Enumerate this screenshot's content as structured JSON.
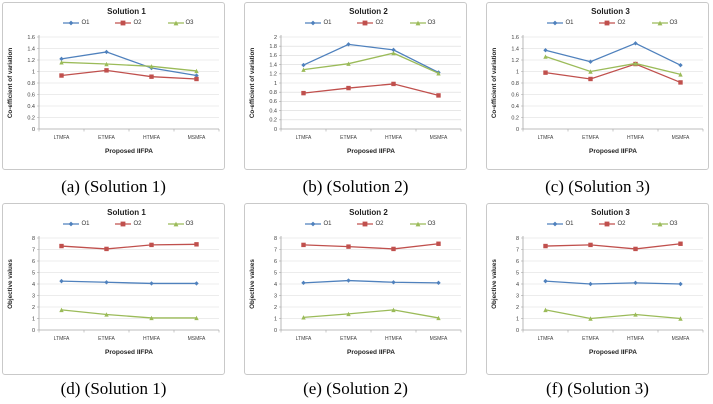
{
  "palette": {
    "o1_blue": "#4F81BD",
    "o2_red": "#C0504D",
    "o3_green": "#9BBB59",
    "gridline": "#d9d9d9",
    "axis": "#a6a6a6",
    "panel_border": "#c9c9c9",
    "tick_text": "#404040"
  },
  "chart_data": [
    {
      "type": "line",
      "panel_id": "a",
      "title": "Solution 1",
      "caption": "(a) (Solution 1)",
      "xlabel": "Proposed IIFPA",
      "ylabel": "Co-efficient of variation",
      "categories": [
        "LTMFA",
        "ETMFA",
        "HTMFA",
        "MSMFA"
      ],
      "ylim": [
        0,
        1.6
      ],
      "ytick_step": 0.2,
      "grid": "horizontal",
      "legend_position": "top",
      "series": [
        {
          "name": "O1",
          "color": "#4F81BD",
          "marker": "diamond",
          "values": [
            1.22,
            1.34,
            1.06,
            0.93
          ]
        },
        {
          "name": "O2",
          "color": "#C0504D",
          "marker": "square",
          "values": [
            0.93,
            1.02,
            0.91,
            0.87
          ]
        },
        {
          "name": "O3",
          "color": "#9BBB59",
          "marker": "triangle",
          "values": [
            1.16,
            1.13,
            1.09,
            1.01
          ]
        }
      ]
    },
    {
      "type": "line",
      "panel_id": "b",
      "title": "Solution 2",
      "caption": "(b) (Solution 2)",
      "xlabel": "Proposed IIFPA",
      "ylabel": "Co-efficient of variation",
      "categories": [
        "LTMFA",
        "ETMFA",
        "HTMFA",
        "MSMFA"
      ],
      "ylim": [
        0,
        2
      ],
      "ytick_step": 0.2,
      "grid": "horizontal",
      "legend_position": "top",
      "series": [
        {
          "name": "O1",
          "color": "#4F81BD",
          "marker": "diamond",
          "values": [
            1.39,
            1.84,
            1.72,
            1.23
          ]
        },
        {
          "name": "O2",
          "color": "#C0504D",
          "marker": "square",
          "values": [
            0.78,
            0.89,
            0.98,
            0.73
          ]
        },
        {
          "name": "O3",
          "color": "#9BBB59",
          "marker": "triangle",
          "values": [
            1.29,
            1.42,
            1.65,
            1.21
          ]
        }
      ]
    },
    {
      "type": "line",
      "panel_id": "c",
      "title": "Solution 3",
      "caption": "(c) (Solution 3)",
      "xlabel": "Proposed IIFPA",
      "ylabel": "Co-efficient of variation",
      "categories": [
        "LTMFA",
        "ETMFA",
        "HTMFA",
        "MSMFA"
      ],
      "ylim": [
        0,
        1.6
      ],
      "ytick_step": 0.2,
      "grid": "horizontal",
      "legend_position": "top",
      "series": [
        {
          "name": "O1",
          "color": "#4F81BD",
          "marker": "diamond",
          "values": [
            1.37,
            1.17,
            1.49,
            1.11
          ]
        },
        {
          "name": "O2",
          "color": "#C0504D",
          "marker": "square",
          "values": [
            0.98,
            0.87,
            1.13,
            0.81
          ]
        },
        {
          "name": "O3",
          "color": "#9BBB59",
          "marker": "triangle",
          "values": [
            1.26,
            1.0,
            1.14,
            0.95
          ]
        }
      ]
    },
    {
      "type": "line",
      "panel_id": "d",
      "title": "Solution 1",
      "caption": "(d) (Solution 1)",
      "xlabel": "Proposed IIFPA",
      "ylabel": "Objective values",
      "categories": [
        "LTMFA",
        "ETMFA",
        "HTMFA",
        "MSMFA"
      ],
      "ylim": [
        0,
        8
      ],
      "ytick_step": 1,
      "grid": "horizontal",
      "legend_position": "top",
      "series": [
        {
          "name": "O1",
          "color": "#4F81BD",
          "marker": "diamond",
          "values": [
            4.25,
            4.15,
            4.05,
            4.05
          ]
        },
        {
          "name": "O2",
          "color": "#C0504D",
          "marker": "square",
          "values": [
            7.3,
            7.05,
            7.4,
            7.45
          ]
        },
        {
          "name": "O3",
          "color": "#9BBB59",
          "marker": "triangle",
          "values": [
            1.75,
            1.35,
            1.05,
            1.05
          ]
        }
      ]
    },
    {
      "type": "line",
      "panel_id": "e",
      "title": "Solution 2",
      "caption": "(e) (Solution 2)",
      "xlabel": "Proposed IIFPA",
      "ylabel": "Objective values",
      "categories": [
        "LTMFA",
        "ETMFA",
        "HTMFA",
        "MSMFA"
      ],
      "ylim": [
        0,
        8
      ],
      "ytick_step": 1,
      "grid": "horizontal",
      "legend_position": "top",
      "series": [
        {
          "name": "O1",
          "color": "#4F81BD",
          "marker": "diamond",
          "values": [
            4.1,
            4.3,
            4.15,
            4.1
          ]
        },
        {
          "name": "O2",
          "color": "#C0504D",
          "marker": "square",
          "values": [
            7.4,
            7.25,
            7.05,
            7.5
          ]
        },
        {
          "name": "O3",
          "color": "#9BBB59",
          "marker": "triangle",
          "values": [
            1.1,
            1.4,
            1.75,
            1.05
          ]
        }
      ]
    },
    {
      "type": "line",
      "panel_id": "f",
      "title": "Solution 3",
      "caption": "(f) (Solution 3)",
      "xlabel": "Proposed IIFPA",
      "ylabel": "Objective values",
      "categories": [
        "LTMFA",
        "ETMFA",
        "HTMFA",
        "MSMFA"
      ],
      "ylim": [
        0,
        8
      ],
      "ytick_step": 1,
      "grid": "horizontal",
      "legend_position": "top",
      "series": [
        {
          "name": "O1",
          "color": "#4F81BD",
          "marker": "diamond",
          "values": [
            4.25,
            4.0,
            4.1,
            4.0
          ]
        },
        {
          "name": "O2",
          "color": "#C0504D",
          "marker": "square",
          "values": [
            7.3,
            7.4,
            7.05,
            7.5
          ]
        },
        {
          "name": "O3",
          "color": "#9BBB59",
          "marker": "triangle",
          "values": [
            1.75,
            1.0,
            1.35,
            1.0
          ]
        }
      ]
    }
  ]
}
